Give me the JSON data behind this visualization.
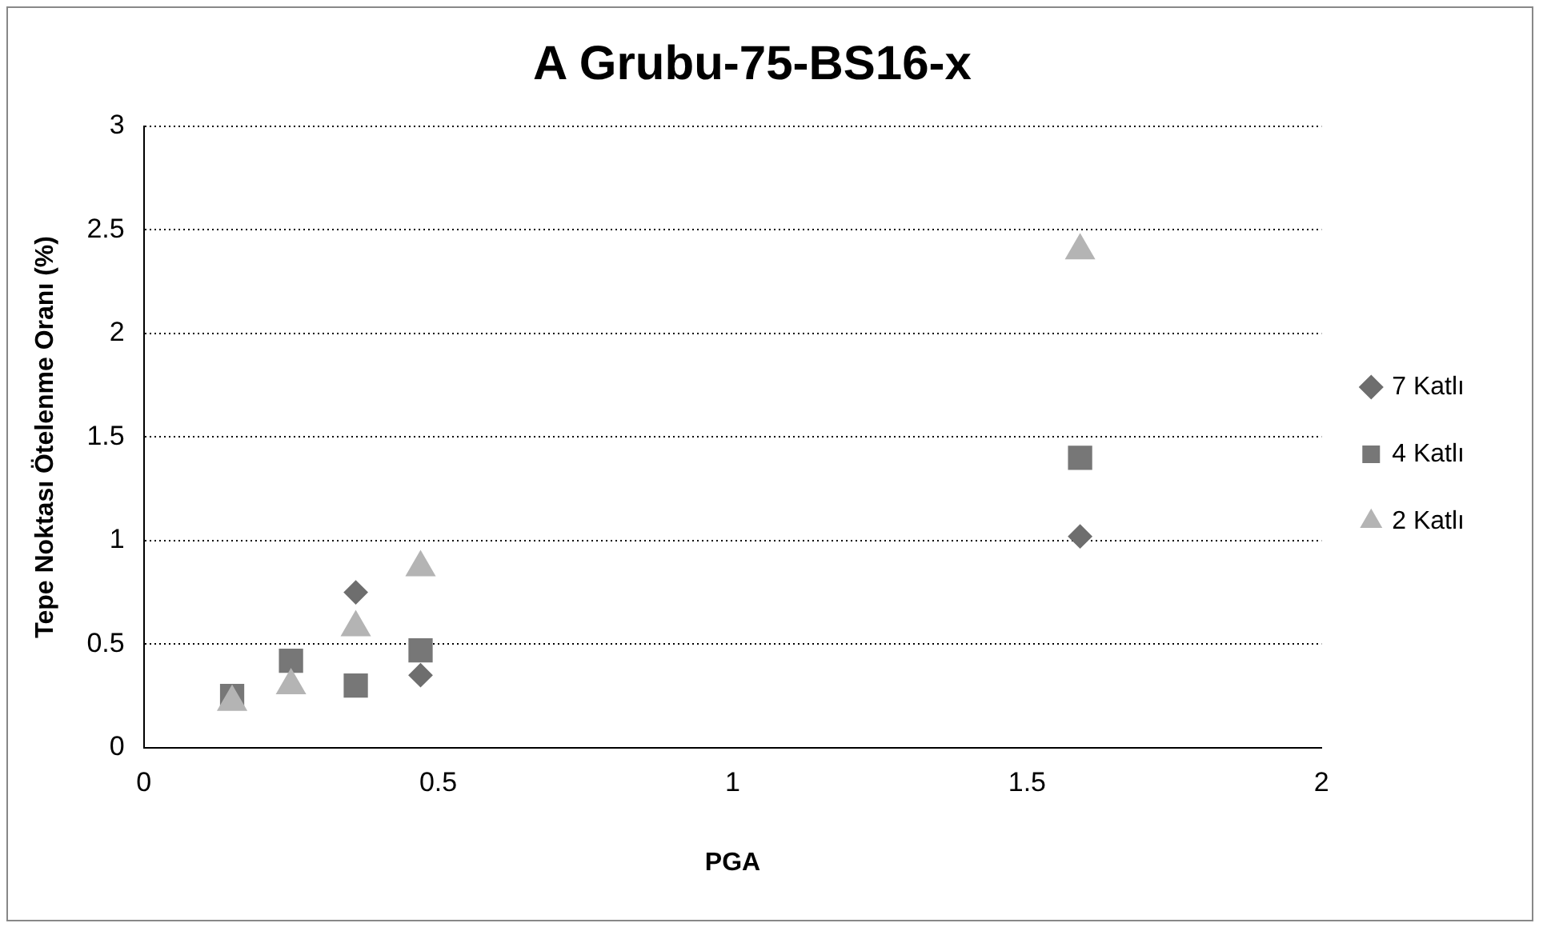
{
  "chart_data": {
    "type": "scatter",
    "title": "A Grubu-75-BS16-x",
    "xlabel": "PGA",
    "ylabel": "Tepe Noktası Ötelenme Oranı (%)",
    "series": [
      {
        "name": "7 Katlı",
        "color": "#6e6e6e",
        "marker": "diamond",
        "x": [
          0.36,
          0.47,
          1.59
        ],
        "values": [
          0.75,
          0.35,
          1.02
        ]
      },
      {
        "name": "4 Katlı",
        "color": "#777777",
        "marker": "square",
        "x": [
          0.15,
          0.25,
          0.36,
          0.47,
          1.59
        ],
        "values": [
          0.25,
          0.42,
          0.3,
          0.47,
          1.4
        ]
      },
      {
        "name": "2 Katlı",
        "color": "#b4b4b4",
        "marker": "triangle",
        "x": [
          0.15,
          0.25,
          0.36,
          0.47,
          1.59
        ],
        "values": [
          0.22,
          0.3,
          0.58,
          0.87,
          2.4
        ]
      }
    ],
    "xlim": [
      0,
      2
    ],
    "xticks": [
      0,
      0.5,
      1,
      1.5,
      2
    ],
    "ylim": [
      0,
      3
    ],
    "yticks": [
      0,
      0.5,
      1,
      1.5,
      2,
      2.5,
      3
    ],
    "grid": "y",
    "legend": "right"
  }
}
